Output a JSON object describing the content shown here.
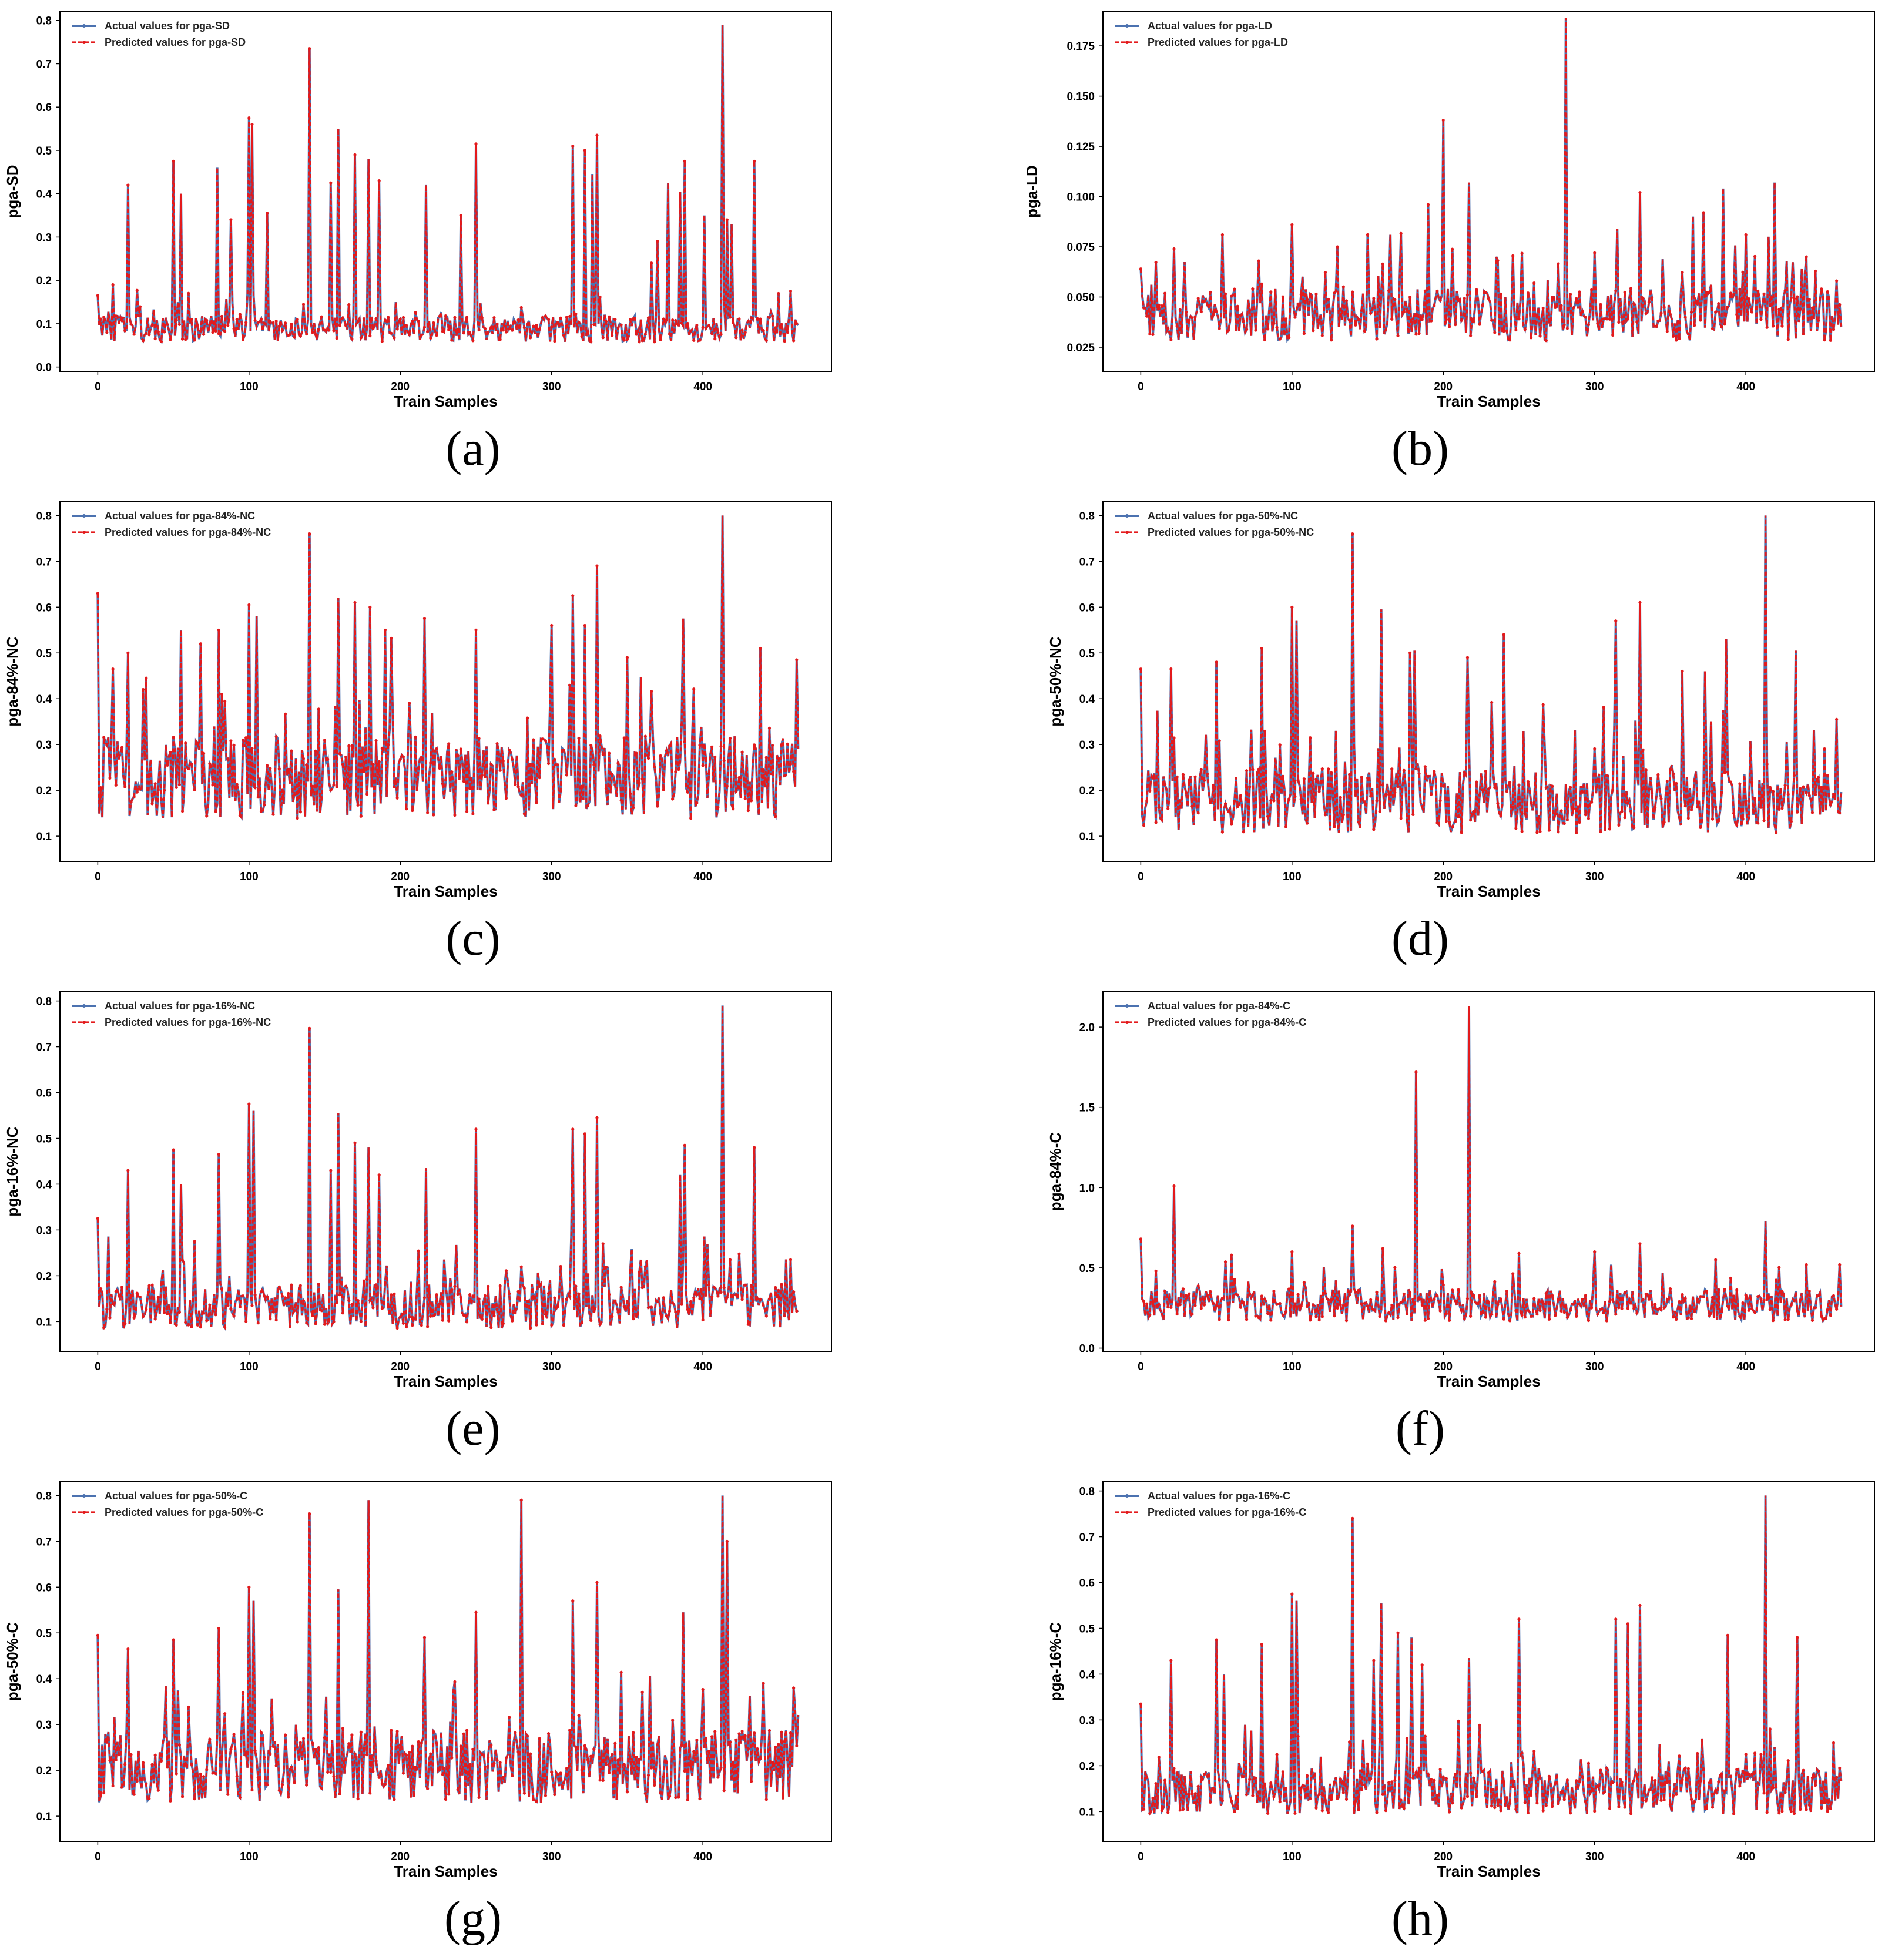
{
  "chart_data": [
    {
      "type": "line",
      "panel_label": "(a)",
      "title": "",
      "xlabel": "Train Samples",
      "ylabel": "pga-SD",
      "xlim": [
        -25,
        485
      ],
      "ylim": [
        -0.01,
        0.82
      ],
      "xticks": [
        0,
        100,
        200,
        300,
        400
      ],
      "yticks": [
        0.0,
        0.1,
        0.2,
        0.3,
        0.4,
        0.5,
        0.6,
        0.7,
        0.8
      ],
      "legend": [
        "Actual values for pga-SD",
        "Predicted values for pga-SD"
      ],
      "series": [
        {
          "name": "Actual values for pga-SD",
          "color": "#4c72b0",
          "style": "solid"
        },
        {
          "name": "Predicted values for pga-SD",
          "color": "#e31a1c",
          "style": "dashed"
        }
      ],
      "n_samples": 464,
      "base": 0.085,
      "spread": 0.03,
      "floor": 0.02,
      "peaks": [
        [
          0,
          0.165
        ],
        [
          10,
          0.19
        ],
        [
          20,
          0.42
        ],
        [
          50,
          0.475
        ],
        [
          55,
          0.4
        ],
        [
          60,
          0.17
        ],
        [
          79,
          0.46
        ],
        [
          88,
          0.34
        ],
        [
          100,
          0.575
        ],
        [
          102,
          0.56
        ],
        [
          112,
          0.355
        ],
        [
          140,
          0.735
        ],
        [
          154,
          0.425
        ],
        [
          159,
          0.55
        ],
        [
          170,
          0.49
        ],
        [
          179,
          0.48
        ],
        [
          186,
          0.43
        ],
        [
          217,
          0.42
        ],
        [
          240,
          0.35
        ],
        [
          250,
          0.515
        ],
        [
          314,
          0.51
        ],
        [
          322,
          0.5
        ],
        [
          327,
          0.445
        ],
        [
          330,
          0.535
        ],
        [
          366,
          0.24
        ],
        [
          370,
          0.29
        ],
        [
          377,
          0.425
        ],
        [
          385,
          0.405
        ],
        [
          388,
          0.475
        ],
        [
          401,
          0.35
        ],
        [
          413,
          0.79
        ],
        [
          416,
          0.34
        ],
        [
          419,
          0.33
        ],
        [
          434,
          0.475
        ],
        [
          458,
          0.175
        ]
      ]
    },
    {
      "type": "line",
      "panel_label": "(b)",
      "title": "",
      "xlabel": "Train Samples",
      "ylabel": "pga-LD",
      "xlim": [
        -25,
        485
      ],
      "ylim": [
        0.013,
        0.192
      ],
      "xticks": [
        0,
        100,
        200,
        300,
        400
      ],
      "yticks": [
        0.025,
        0.05,
        0.075,
        0.1,
        0.125,
        0.15,
        0.175
      ],
      "ytick_labels": [
        "0.025",
        "0.050",
        "0.075",
        "0.100",
        "0.125",
        "0.150",
        "0.175"
      ],
      "legend": [
        "Actual values for pga-LD",
        "Predicted values for pga-LD"
      ],
      "series": [
        {
          "name": "Actual values for pga-LD",
          "color": "#4c72b0",
          "style": "solid"
        },
        {
          "name": "Predicted values for pga-LD",
          "color": "#e31a1c",
          "style": "dashed"
        }
      ],
      "n_samples": 464,
      "base": 0.04,
      "spread": 0.013,
      "floor": 0.02,
      "peaks": [
        [
          0,
          0.064
        ],
        [
          22,
          0.074
        ],
        [
          54,
          0.081
        ],
        [
          78,
          0.068
        ],
        [
          100,
          0.086
        ],
        [
          130,
          0.075
        ],
        [
          150,
          0.081
        ],
        [
          165,
          0.081
        ],
        [
          190,
          0.096
        ],
        [
          200,
          0.138
        ],
        [
          217,
          0.107
        ],
        [
          235,
          0.07
        ],
        [
          260,
          0.057
        ],
        [
          281,
          0.189
        ],
        [
          300,
          0.072
        ],
        [
          315,
          0.084
        ],
        [
          330,
          0.102
        ],
        [
          365,
          0.09
        ],
        [
          372,
          0.092
        ],
        [
          385,
          0.104
        ],
        [
          400,
          0.081
        ],
        [
          415,
          0.08
        ],
        [
          419,
          0.107
        ],
        [
          440,
          0.07
        ],
        [
          460,
          0.058
        ]
      ]
    },
    {
      "type": "line",
      "panel_label": "(c)",
      "title": "",
      "xlabel": "Train Samples",
      "ylabel": "pga-84%-NC",
      "xlim": [
        -25,
        485
      ],
      "ylim": [
        0.045,
        0.83
      ],
      "xticks": [
        0,
        100,
        200,
        300,
        400
      ],
      "yticks": [
        0.1,
        0.2,
        0.3,
        0.4,
        0.5,
        0.6,
        0.7,
        0.8
      ],
      "legend": [
        "Actual values for pga-84%-NC",
        "Predicted values for pga-84%-NC"
      ],
      "series": [
        {
          "name": "Actual values for pga-84%-NC",
          "color": "#4c72b0",
          "style": "solid"
        },
        {
          "name": "Predicted values for pga-84%-NC",
          "color": "#e31a1c",
          "style": "dashed"
        }
      ],
      "n_samples": 464,
      "base": 0.22,
      "spread": 0.09,
      "floor": 0.08,
      "peaks": [
        [
          0,
          0.63
        ],
        [
          10,
          0.465
        ],
        [
          20,
          0.5
        ],
        [
          32,
          0.445
        ],
        [
          55,
          0.55
        ],
        [
          68,
          0.52
        ],
        [
          80,
          0.55
        ],
        [
          100,
          0.605
        ],
        [
          105,
          0.58
        ],
        [
          140,
          0.76
        ],
        [
          159,
          0.62
        ],
        [
          170,
          0.61
        ],
        [
          180,
          0.6
        ],
        [
          190,
          0.55
        ],
        [
          216,
          0.575
        ],
        [
          250,
          0.55
        ],
        [
          300,
          0.56
        ],
        [
          314,
          0.625
        ],
        [
          322,
          0.56
        ],
        [
          330,
          0.69
        ],
        [
          350,
          0.49
        ],
        [
          387,
          0.575
        ],
        [
          413,
          0.8
        ],
        [
          438,
          0.51
        ],
        [
          462,
          0.485
        ]
      ]
    },
    {
      "type": "line",
      "panel_label": "(d)",
      "title": "",
      "xlabel": "Train Samples",
      "ylabel": "pga-50%-NC",
      "xlim": [
        -25,
        485
      ],
      "ylim": [
        0.045,
        0.83
      ],
      "xticks": [
        0,
        100,
        200,
        300,
        400
      ],
      "yticks": [
        0.1,
        0.2,
        0.3,
        0.4,
        0.5,
        0.6,
        0.7,
        0.8
      ],
      "legend": [
        "Actual values for pga-50%-NC",
        "Predicted values for pga-50%-NC"
      ],
      "series": [
        {
          "name": "Actual values for pga-50%-NC",
          "color": "#4c72b0",
          "style": "solid"
        },
        {
          "name": "Predicted values for pga-50%-NC",
          "color": "#e31a1c",
          "style": "dashed"
        }
      ],
      "n_samples": 464,
      "base": 0.17,
      "spread": 0.07,
      "floor": 0.07,
      "peaks": [
        [
          0,
          0.465
        ],
        [
          20,
          0.465
        ],
        [
          50,
          0.48
        ],
        [
          80,
          0.51
        ],
        [
          100,
          0.6
        ],
        [
          103,
          0.57
        ],
        [
          140,
          0.76
        ],
        [
          159,
          0.595
        ],
        [
          178,
          0.5
        ],
        [
          181,
          0.505
        ],
        [
          216,
          0.49
        ],
        [
          240,
          0.54
        ],
        [
          314,
          0.57
        ],
        [
          330,
          0.61
        ],
        [
          358,
          0.46
        ],
        [
          373,
          0.46
        ],
        [
          387,
          0.53
        ],
        [
          413,
          0.8
        ],
        [
          433,
          0.505
        ],
        [
          460,
          0.355
        ]
      ]
    },
    {
      "type": "line",
      "panel_label": "(e)",
      "title": "",
      "xlabel": "Train Samples",
      "ylabel": "pga-16%-NC",
      "xlim": [
        -25,
        485
      ],
      "ylim": [
        0.035,
        0.82
      ],
      "xticks": [
        0,
        100,
        200,
        300,
        400
      ],
      "yticks": [
        0.1,
        0.2,
        0.3,
        0.4,
        0.5,
        0.6,
        0.7,
        0.8
      ],
      "legend": [
        "Actual values for pga-16%-NC",
        "Predicted values for pga-16%-NC"
      ],
      "series": [
        {
          "name": "Actual values for pga-16%-NC",
          "color": "#4c72b0",
          "style": "solid"
        },
        {
          "name": "Predicted values for pga-16%-NC",
          "color": "#e31a1c",
          "style": "dashed"
        }
      ],
      "n_samples": 464,
      "base": 0.13,
      "spread": 0.05,
      "floor": 0.06,
      "peaks": [
        [
          0,
          0.325
        ],
        [
          20,
          0.43
        ],
        [
          50,
          0.475
        ],
        [
          55,
          0.4
        ],
        [
          80,
          0.465
        ],
        [
          100,
          0.575
        ],
        [
          103,
          0.56
        ],
        [
          140,
          0.74
        ],
        [
          154,
          0.43
        ],
        [
          159,
          0.555
        ],
        [
          170,
          0.49
        ],
        [
          179,
          0.48
        ],
        [
          186,
          0.42
        ],
        [
          217,
          0.435
        ],
        [
          250,
          0.52
        ],
        [
          314,
          0.52
        ],
        [
          322,
          0.51
        ],
        [
          330,
          0.545
        ],
        [
          385,
          0.42
        ],
        [
          388,
          0.485
        ],
        [
          413,
          0.79
        ],
        [
          434,
          0.48
        ],
        [
          458,
          0.235
        ]
      ]
    },
    {
      "type": "line",
      "panel_label": "(f)",
      "title": "",
      "xlabel": "Train Samples",
      "ylabel": "pga-84%-C",
      "xlim": [
        -25,
        485
      ],
      "ylim": [
        -0.02,
        2.22
      ],
      "xticks": [
        0,
        100,
        200,
        300,
        400
      ],
      "yticks": [
        0.0,
        0.5,
        1.0,
        1.5,
        2.0
      ],
      "legend": [
        "Actual values for pga-84%-C",
        "Predicted values for pga-84%-C"
      ],
      "series": [
        {
          "name": "Actual values for pga-84%-C",
          "color": "#4c72b0",
          "style": "solid"
        },
        {
          "name": "Predicted values for pga-84%-C",
          "color": "#e31a1c",
          "style": "dashed"
        }
      ],
      "n_samples": 464,
      "base": 0.26,
      "spread": 0.1,
      "floor": 0.1,
      "peaks": [
        [
          0,
          0.68
        ],
        [
          10,
          0.48
        ],
        [
          22,
          1.01
        ],
        [
          60,
          0.58
        ],
        [
          100,
          0.6
        ],
        [
          140,
          0.76
        ],
        [
          160,
          0.62
        ],
        [
          182,
          1.72
        ],
        [
          217,
          2.13
        ],
        [
          250,
          0.59
        ],
        [
          300,
          0.6
        ],
        [
          330,
          0.65
        ],
        [
          380,
          0.55
        ],
        [
          413,
          0.79
        ],
        [
          440,
          0.52
        ],
        [
          462,
          0.52
        ]
      ]
    },
    {
      "type": "line",
      "panel_label": "(g)",
      "title": "",
      "xlabel": "Train Samples",
      "ylabel": "pga-50%-C",
      "xlim": [
        -25,
        485
      ],
      "ylim": [
        0.045,
        0.83
      ],
      "xticks": [
        0,
        100,
        200,
        300,
        400
      ],
      "yticks": [
        0.1,
        0.2,
        0.3,
        0.4,
        0.5,
        0.6,
        0.7,
        0.8
      ],
      "legend": [
        "Actual values for pga-50%-C",
        "Predicted values for pga-50%-C"
      ],
      "series": [
        {
          "name": "Actual values for pga-50%-C",
          "color": "#4c72b0",
          "style": "solid"
        },
        {
          "name": "Predicted values for pga-50%-C",
          "color": "#e31a1c",
          "style": "dashed"
        }
      ],
      "n_samples": 464,
      "base": 0.2,
      "spread": 0.08,
      "floor": 0.07,
      "peaks": [
        [
          0,
          0.495
        ],
        [
          20,
          0.465
        ],
        [
          50,
          0.485
        ],
        [
          80,
          0.51
        ],
        [
          100,
          0.6
        ],
        [
          103,
          0.57
        ],
        [
          140,
          0.76
        ],
        [
          159,
          0.595
        ],
        [
          179,
          0.79
        ],
        [
          216,
          0.49
        ],
        [
          250,
          0.545
        ],
        [
          280,
          0.79
        ],
        [
          314,
          0.57
        ],
        [
          330,
          0.61
        ],
        [
          387,
          0.545
        ],
        [
          413,
          0.8
        ],
        [
          416,
          0.7
        ],
        [
          440,
          0.39
        ],
        [
          460,
          0.38
        ]
      ]
    },
    {
      "type": "line",
      "panel_label": "(h)",
      "title": "",
      "xlabel": "Train Samples",
      "ylabel": "pga-16%-C",
      "xlim": [
        -25,
        485
      ],
      "ylim": [
        0.035,
        0.82
      ],
      "xticks": [
        0,
        100,
        200,
        300,
        400
      ],
      "yticks": [
        0.1,
        0.2,
        0.3,
        0.4,
        0.5,
        0.6,
        0.7,
        0.8
      ],
      "legend": [
        "Actual values for pga-16%-C",
        "Predicted values for pga-16%-C"
      ],
      "series": [
        {
          "name": "Actual values for pga-16%-C",
          "color": "#4c72b0",
          "style": "solid"
        },
        {
          "name": "Predicted values for pga-16%-C",
          "color": "#e31a1c",
          "style": "dashed"
        }
      ],
      "n_samples": 464,
      "base": 0.14,
      "spread": 0.05,
      "floor": 0.06,
      "peaks": [
        [
          0,
          0.335
        ],
        [
          20,
          0.43
        ],
        [
          50,
          0.475
        ],
        [
          55,
          0.4
        ],
        [
          80,
          0.465
        ],
        [
          100,
          0.575
        ],
        [
          103,
          0.56
        ],
        [
          140,
          0.74
        ],
        [
          154,
          0.43
        ],
        [
          159,
          0.555
        ],
        [
          170,
          0.49
        ],
        [
          179,
          0.48
        ],
        [
          186,
          0.42
        ],
        [
          217,
          0.435
        ],
        [
          250,
          0.52
        ],
        [
          314,
          0.52
        ],
        [
          322,
          0.51
        ],
        [
          330,
          0.55
        ],
        [
          388,
          0.485
        ],
        [
          413,
          0.79
        ],
        [
          434,
          0.48
        ],
        [
          458,
          0.25
        ]
      ]
    }
  ]
}
